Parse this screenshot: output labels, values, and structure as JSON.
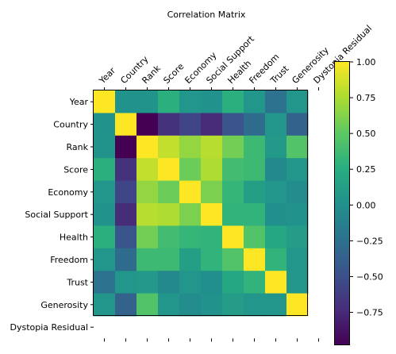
{
  "chart_data": {
    "type": "heatmap",
    "title": "Correlation Matrix",
    "x_labels": [
      "Year",
      "Country",
      "Rank",
      "Score",
      "Economy",
      "Social Support",
      "Health",
      "Freedom",
      "Trust",
      "Generosity",
      "Dystopia Residual"
    ],
    "y_labels": [
      "Year",
      "Country",
      "Rank",
      "Score",
      "Economy",
      "Social Support",
      "Health",
      "Freedom",
      "Trust",
      "Generosity",
      "Dystopia Residual"
    ],
    "matrix": [
      [
        1.0,
        0.02,
        0.03,
        0.27,
        0.05,
        0.02,
        0.27,
        0.05,
        -0.24,
        0.05,
        null
      ],
      [
        0.02,
        1.0,
        -0.98,
        -0.7,
        -0.57,
        -0.74,
        -0.46,
        -0.29,
        0.05,
        -0.36,
        null
      ],
      [
        0.03,
        -0.98,
        1.0,
        0.82,
        0.67,
        0.78,
        0.57,
        0.36,
        0.08,
        0.45,
        null
      ],
      [
        0.27,
        -0.7,
        0.82,
        1.0,
        0.55,
        0.76,
        0.38,
        0.36,
        -0.05,
        0.05,
        null
      ],
      [
        0.05,
        -0.57,
        0.67,
        0.55,
        1.0,
        0.6,
        0.32,
        0.13,
        0.05,
        -0.03,
        null
      ],
      [
        0.02,
        -0.74,
        0.78,
        0.76,
        0.6,
        1.0,
        0.3,
        0.3,
        0.0,
        0.02,
        null
      ],
      [
        0.27,
        -0.46,
        0.57,
        0.38,
        0.32,
        0.3,
        1.0,
        0.45,
        0.2,
        0.1,
        null
      ],
      [
        0.05,
        -0.29,
        0.36,
        0.36,
        0.13,
        0.3,
        0.45,
        1.0,
        0.3,
        0.05,
        null
      ],
      [
        -0.24,
        0.05,
        0.08,
        -0.05,
        0.05,
        0.0,
        0.2,
        0.3,
        1.0,
        0.05,
        null
      ],
      [
        0.05,
        -0.36,
        0.45,
        0.05,
        -0.03,
        0.02,
        0.1,
        0.05,
        0.05,
        1.0,
        null
      ],
      [
        null,
        null,
        null,
        null,
        null,
        null,
        null,
        null,
        null,
        null,
        null
      ]
    ],
    "colorbar": {
      "colormap": "viridis",
      "range": [
        -0.98,
        1.0
      ],
      "ticks": [
        "1.00",
        "0.75",
        "0.50",
        "0.25",
        "0.00",
        "−0.25",
        "−0.50",
        "−0.75"
      ],
      "tick_values": [
        1.0,
        0.75,
        0.5,
        0.25,
        0.0,
        -0.25,
        -0.5,
        -0.75
      ]
    },
    "grid": false
  }
}
